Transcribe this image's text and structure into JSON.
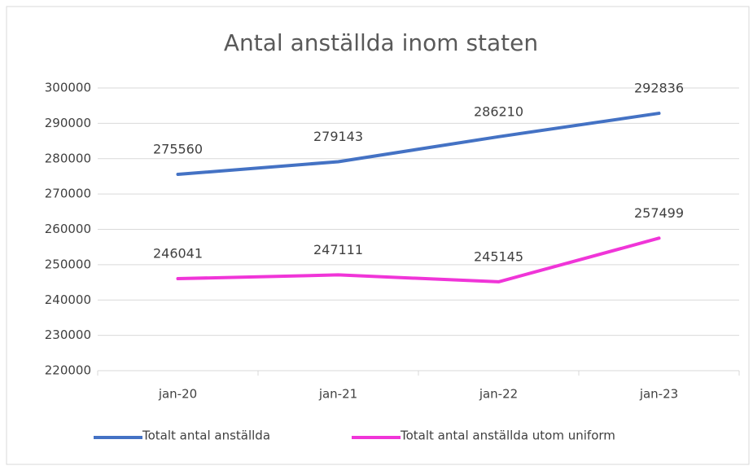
{
  "chart_data": {
    "type": "line",
    "title": "Antal anställda inom staten",
    "categories": [
      "jan-20",
      "jan-21",
      "jan-22",
      "jan-23"
    ],
    "series": [
      {
        "name": "Totalt antal anställda",
        "color": "#4472c4",
        "values": [
          275560,
          279143,
          286210,
          292836
        ]
      },
      {
        "name": "Totalt antal anställda utom uniform",
        "color": "#f035d8",
        "values": [
          246041,
          247111,
          245145,
          257499
        ]
      }
    ],
    "ylim": [
      220000,
      300000
    ],
    "yticks": [
      220000,
      230000,
      240000,
      250000,
      260000,
      270000,
      280000,
      290000,
      300000
    ],
    "grid": true,
    "legend": "bottom"
  }
}
